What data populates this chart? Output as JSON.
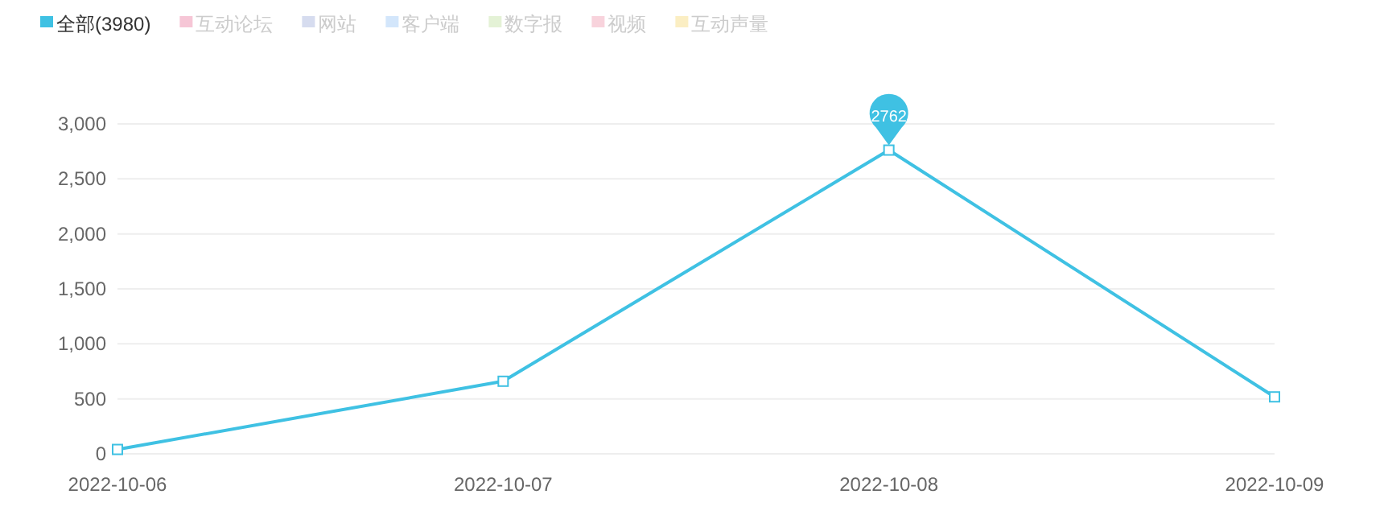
{
  "chart_data": {
    "type": "line",
    "categories": [
      "2022-10-06",
      "2022-10-07",
      "2022-10-08",
      "2022-10-09"
    ],
    "series": [
      {
        "name": "全部(3980)",
        "color": "#3fc1e3",
        "values": [
          40,
          660,
          2762,
          518
        ]
      },
      {
        "name": "互动论坛",
        "color": "#f6c6d6",
        "values": [
          null,
          null,
          null,
          null
        ]
      },
      {
        "name": "网站",
        "color": "#d6dcef",
        "values": [
          null,
          null,
          null,
          null
        ]
      },
      {
        "name": "客户端",
        "color": "#d3e6fb",
        "values": [
          null,
          null,
          null,
          null
        ]
      },
      {
        "name": "数字报",
        "color": "#e4f2d6",
        "values": [
          null,
          null,
          null,
          null
        ]
      },
      {
        "name": "视频",
        "color": "#f8d3dc",
        "values": [
          null,
          null,
          null,
          null
        ]
      },
      {
        "name": "互动声量",
        "color": "#fbeec3",
        "values": [
          null,
          null,
          null,
          null
        ]
      }
    ],
    "annotations": [
      {
        "text": "2762",
        "x": "2022-10-08",
        "y": 2762
      }
    ],
    "ylim": [
      0,
      3000
    ],
    "yticks": [
      0,
      {
        "value": 500,
        "label": "500"
      },
      {
        "value": 1000,
        "label": "1,000"
      },
      {
        "value": 1500,
        "label": "1,500"
      },
      {
        "value": 2000,
        "label": "2,000"
      },
      {
        "value": 2500,
        "label": "2,500"
      },
      {
        "value": 3000,
        "label": "3,000"
      }
    ],
    "grid": "y",
    "legend": "top left",
    "marker": "square",
    "line_style": "solid"
  }
}
